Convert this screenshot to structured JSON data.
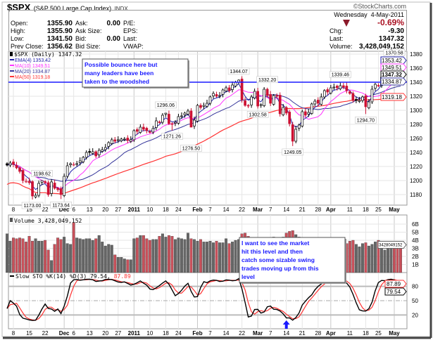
{
  "header": {
    "symbol": "$SPX",
    "name": "(S&P 500 Large Cap Index)",
    "exchange": "INDX",
    "brand": "©StockCharts.com",
    "date": "Wednesday  4-May-2011",
    "change_pct": "-0.69%",
    "left_fields": [
      {
        "label": "Open:",
        "value": "1355.90"
      },
      {
        "label": "High:",
        "value": "1355.90"
      },
      {
        "label": "Low:",
        "value": "1341.50"
      },
      {
        "label": "Prev Close:",
        "value": "1356.62"
      }
    ],
    "mid_fields": [
      {
        "label": "Ask:",
        "value": "0.00"
      },
      {
        "label": "Ask Size:",
        "value": ""
      },
      {
        "label": "Bid:",
        "value": "0.00"
      },
      {
        "label": "Bid Size:",
        "value": ""
      }
    ],
    "extra_fields": [
      "P/E:",
      "EPS:",
      "Last:",
      "VWAP:"
    ],
    "right_fields": [
      {
        "label": "Chg:",
        "value": "-9.30"
      },
      {
        "label": "Last:",
        "value": "1347.32"
      },
      {
        "label": "Volume:",
        "value": "3,428,049,152"
      }
    ]
  },
  "colors": {
    "down": "#cc1133",
    "ema4": "#2222aa",
    "ma10": "#ff33ff",
    "ma20": "#333399",
    "ma50": "#ff3333",
    "annotation": "#1a1aff",
    "pct": "#aa1122",
    "vol_up": "#666666",
    "vol_down": "#c8505a"
  },
  "chart_data": [
    {
      "type": "candlestick",
      "title": "$SPX (Daily) 1347.32",
      "legend": [
        {
          "name": "EMA(4)",
          "value": "1353.42",
          "color": "#2222aa"
        },
        {
          "name": "MA(10)",
          "value": "1349.51",
          "color": "#ff33ff"
        },
        {
          "name": "MA(20)",
          "value": "1334.87",
          "color": "#333399"
        },
        {
          "name": "MA(50)",
          "value": "1319.18",
          "color": "#ff3333"
        }
      ],
      "ylim": [
        1160,
        1385
      ],
      "yticks": [
        1180,
        1200,
        1220,
        1240,
        1260,
        1280,
        1300,
        1320,
        1340,
        1360,
        1380
      ],
      "closes": [
        1222,
        1225,
        1223,
        1218,
        1213,
        1200,
        1199,
        1197,
        1178,
        1179,
        1196,
        1200,
        1197,
        1180,
        1198,
        1189,
        1187,
        1180,
        1206,
        1221,
        1224,
        1223,
        1224,
        1228,
        1233,
        1240,
        1240,
        1241,
        1235,
        1243,
        1244,
        1247,
        1254,
        1258,
        1256,
        1258,
        1259,
        1259,
        1257,
        1258,
        1271,
        1270,
        1276,
        1273,
        1271,
        1269,
        1274,
        1285,
        1283,
        1293,
        1296,
        1281,
        1280,
        1283,
        1291,
        1292,
        1296,
        1299,
        1276,
        1286,
        1307,
        1304,
        1307,
        1310,
        1319,
        1324,
        1320,
        1321,
        1329,
        1332,
        1328,
        1336,
        1340,
        1343,
        1315,
        1307,
        1306,
        1319,
        1327,
        1306,
        1308,
        1330,
        1321,
        1310,
        1321,
        1320,
        1295,
        1304,
        1296,
        1281,
        1256,
        1273,
        1279,
        1298,
        1293,
        1297,
        1309,
        1313,
        1310,
        1319,
        1328,
        1326,
        1332,
        1333,
        1332,
        1335,
        1333,
        1328,
        1324,
        1314,
        1314,
        1314,
        1319,
        1305,
        1312,
        1330,
        1337,
        1335,
        1347,
        1355,
        1360,
        1363,
        1361,
        1356,
        1347
      ],
      "point_labels": [
        {
          "label": "1173.00",
          "index": 8,
          "value": 1173.0,
          "kind": "low"
        },
        {
          "label": "1198.62",
          "index": 11,
          "value": 1198.62,
          "kind": "high"
        },
        {
          "label": "1173.64",
          "index": 17,
          "value": 1173.64,
          "kind": "low"
        },
        {
          "label": "1296.06",
          "index": 50,
          "value": 1296.06,
          "kind": "high"
        },
        {
          "label": "1271.26",
          "index": 52,
          "value": 1271.26,
          "kind": "low"
        },
        {
          "label": "1276.50",
          "index": 58,
          "value": 1276.5,
          "kind": "low"
        },
        {
          "label": "1344.07",
          "index": 73,
          "value": 1344.07,
          "kind": "high"
        },
        {
          "label": "1332.20",
          "index": 82,
          "value": 1332.2,
          "kind": "high"
        },
        {
          "label": "1302.58",
          "index": 79,
          "value": 1302.58,
          "kind": "low"
        },
        {
          "label": "1249.05",
          "index": 90,
          "value": 1249.05,
          "kind": "low"
        },
        {
          "label": "1339.46",
          "index": 105,
          "value": 1339.46,
          "kind": "high"
        },
        {
          "label": "1294.70",
          "index": 113,
          "value": 1294.7,
          "kind": "low"
        },
        {
          "label": "1370.58",
          "index": 122,
          "value": 1370.58,
          "kind": "high"
        }
      ],
      "axis_tags": [
        {
          "label": "1353.42",
          "value": 1353.42,
          "color": "#2222aa"
        },
        {
          "label": "1349.51",
          "value": 1349.51,
          "color": "#ff33ff"
        },
        {
          "label": "1347.32",
          "value": 1347.32,
          "color": "#000000"
        },
        {
          "label": "1334.87",
          "value": 1334.87,
          "color": "#333399"
        },
        {
          "label": "1319.18",
          "value": 1319.18,
          "color": "#ff3333"
        }
      ],
      "support_line": 1340,
      "note": "Possible bounce here but many leaders have been taken to the woodshed"
    },
    {
      "type": "bar",
      "title": "Volume 3,428,049,152",
      "tag": "3428049152",
      "unit": "B",
      "yticks": [
        "1B",
        "2B",
        "3B",
        "4B",
        "5B",
        "6B"
      ],
      "values": [
        4.8,
        3.9,
        4.3,
        4.2,
        4.3,
        4.2,
        3.8,
        4.5,
        3.9,
        4.2,
        3.9,
        3.9,
        4.0,
        2.8,
        1.5,
        3.5,
        4.3,
        4.1,
        4.4,
        3.6,
        3.5,
        6.2,
        4.3,
        4.2,
        4.1,
        4.2,
        4.2,
        4.0,
        4.2,
        4.6,
        3.8,
        3.3,
        3.5,
        3.4,
        2.2,
        1.9,
        1.9,
        1.7,
        1.6,
        1.6,
        4.2,
        4.3,
        4.6,
        4.6,
        4.2,
        4.0,
        4.1,
        4.1,
        4.5,
        4.8,
        4.4,
        4.6,
        4.5,
        4.1,
        4.3,
        4.2,
        4.1,
        4.9,
        4.2,
        4.1,
        3.9,
        4.1,
        3.8,
        3.8,
        3.9,
        3.7,
        3.9,
        3.7,
        3.7,
        4.2,
        3.6,
        3.8,
        4.0,
        4.1,
        4.8,
        4.9,
        4.5,
        3.9,
        4.0,
        4.1,
        4.2,
        4.0,
        4.3,
        4.2,
        4.4,
        4.2,
        4.3,
        4.4,
        4.9,
        5.1,
        5.2,
        4.7,
        4.4,
        4.0,
        3.8,
        4.1,
        3.9,
        3.9,
        3.8,
        3.7,
        3.8,
        3.9,
        4.0,
        3.6,
        3.9,
        4.0,
        3.8,
        3.6,
        3.9,
        4.0,
        3.5,
        3.2,
        3.6,
        3.7,
        3.3,
        3.5,
        3.8,
        4.0,
        3.6,
        2.8,
        3.5,
        3.6,
        3.8,
        3.5,
        3.4
      ],
      "note": "I want to see the market hit this level and then catch some sizable swing trades moving up from this level"
    },
    {
      "type": "line",
      "title": "Slow STO %K(14) %D(3)",
      "k_value": "79.54",
      "d_value": "87.89",
      "yticks": [
        20,
        50,
        80
      ],
      "ylim": [
        0,
        100
      ],
      "arrow_index": 88
    }
  ],
  "x_axis": {
    "labels": [
      {
        "text": "8",
        "index": 2
      },
      {
        "text": "15",
        "index": 7
      },
      {
        "text": "22",
        "index": 12
      },
      {
        "text": "Dec",
        "index": 18,
        "bold": true
      },
      {
        "text": "6",
        "index": 21
      },
      {
        "text": "13",
        "index": 26
      },
      {
        "text": "20",
        "index": 31
      },
      {
        "text": "27",
        "index": 35
      },
      {
        "text": "2011",
        "index": 40,
        "bold": true
      },
      {
        "text": "10",
        "index": 45
      },
      {
        "text": "18",
        "index": 50
      },
      {
        "text": "24",
        "index": 54
      },
      {
        "text": "Feb",
        "index": 60,
        "bold": true
      },
      {
        "text": "7",
        "index": 64
      },
      {
        "text": "14",
        "index": 69
      },
      {
        "text": "22",
        "index": 74
      },
      {
        "text": "Mar",
        "index": 79,
        "bold": true
      },
      {
        "text": "7",
        "index": 83
      },
      {
        "text": "14",
        "index": 88
      },
      {
        "text": "21",
        "index": 93
      },
      {
        "text": "28",
        "index": 98
      },
      {
        "text": "Apr",
        "index": 102,
        "bold": true
      },
      {
        "text": "11",
        "index": 108
      },
      {
        "text": "18",
        "index": 113
      },
      {
        "text": "25",
        "index": 117
      },
      {
        "text": "May",
        "index": 122,
        "bold": true
      }
    ]
  }
}
